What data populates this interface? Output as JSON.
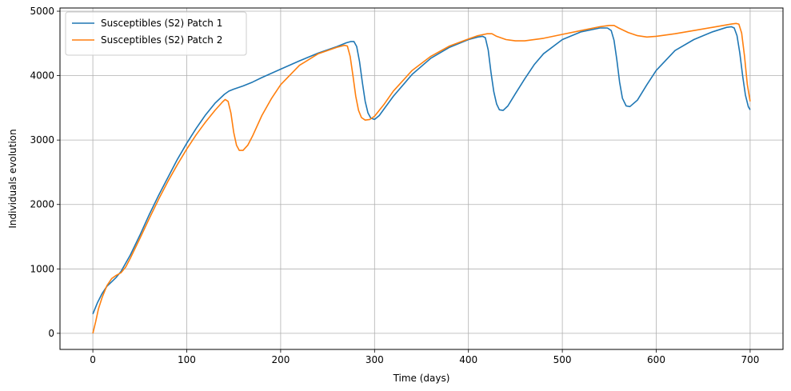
{
  "chart_data": {
    "type": "line",
    "xlabel": "Time (days)",
    "ylabel": "Individuals evolution",
    "xlim": [
      -35,
      735
    ],
    "ylim": [
      -250,
      5050
    ],
    "xticks": [
      0,
      100,
      200,
      300,
      400,
      500,
      600,
      700
    ],
    "yticks": [
      0,
      1000,
      2000,
      3000,
      4000,
      5000
    ],
    "grid": true,
    "legend_position": "top-left",
    "series": [
      {
        "name": "Susceptibles (S2) Patch 1",
        "color": "#1f77b4",
        "x": [
          0,
          5,
          10,
          15,
          20,
          25,
          30,
          40,
          50,
          60,
          70,
          80,
          90,
          100,
          110,
          120,
          130,
          140,
          145,
          150,
          160,
          170,
          180,
          200,
          220,
          240,
          260,
          270,
          275,
          278,
          281,
          284,
          287,
          290,
          293,
          296,
          300,
          305,
          310,
          320,
          340,
          360,
          380,
          400,
          410,
          415,
          418,
          421,
          424,
          427,
          430,
          433,
          437,
          442,
          450,
          460,
          470,
          480,
          500,
          520,
          540,
          548,
          552,
          555,
          558,
          561,
          564,
          568,
          572,
          580,
          590,
          600,
          620,
          640,
          660,
          675,
          680,
          683,
          686,
          689,
          692,
          695,
          698,
          700
        ],
        "values": [
          300,
          480,
          620,
          730,
          800,
          870,
          960,
          1220,
          1520,
          1840,
          2140,
          2420,
          2700,
          2950,
          3180,
          3390,
          3570,
          3710,
          3760,
          3790,
          3840,
          3900,
          3970,
          4100,
          4230,
          4350,
          4450,
          4510,
          4530,
          4530,
          4450,
          4220,
          3900,
          3600,
          3420,
          3340,
          3320,
          3380,
          3480,
          3680,
          4020,
          4270,
          4440,
          4560,
          4600,
          4610,
          4590,
          4400,
          4050,
          3750,
          3560,
          3470,
          3460,
          3530,
          3720,
          3950,
          4170,
          4340,
          4560,
          4680,
          4740,
          4740,
          4700,
          4550,
          4250,
          3900,
          3650,
          3530,
          3520,
          3620,
          3860,
          4080,
          4390,
          4560,
          4680,
          4750,
          4760,
          4740,
          4620,
          4350,
          4000,
          3700,
          3520,
          3470
        ]
      },
      {
        "name": "Susceptibles (S2) Patch 2",
        "color": "#ff7f0e",
        "x": [
          0,
          3,
          6,
          10,
          15,
          20,
          25,
          30,
          35,
          40,
          50,
          60,
          70,
          80,
          90,
          100,
          110,
          120,
          130,
          138,
          141,
          144,
          147,
          150,
          153,
          156,
          160,
          165,
          170,
          180,
          190,
          200,
          220,
          240,
          260,
          268,
          271,
          274,
          277,
          280,
          283,
          286,
          290,
          295,
          300,
          310,
          320,
          340,
          360,
          380,
          400,
          410,
          420,
          425,
          430,
          440,
          450,
          460,
          480,
          500,
          520,
          540,
          550,
          555,
          560,
          570,
          580,
          590,
          600,
          620,
          640,
          660,
          680,
          685,
          688,
          691,
          694,
          697,
          700
        ],
        "values": [
          0,
          180,
          380,
          560,
          740,
          850,
          900,
          940,
          1030,
          1170,
          1470,
          1780,
          2080,
          2360,
          2620,
          2860,
          3080,
          3280,
          3460,
          3590,
          3630,
          3600,
          3420,
          3120,
          2920,
          2840,
          2840,
          2920,
          3060,
          3380,
          3640,
          3860,
          4160,
          4340,
          4440,
          4470,
          4460,
          4300,
          4000,
          3680,
          3460,
          3350,
          3310,
          3320,
          3370,
          3550,
          3760,
          4080,
          4300,
          4460,
          4570,
          4620,
          4650,
          4650,
          4610,
          4560,
          4540,
          4540,
          4580,
          4640,
          4700,
          4760,
          4780,
          4780,
          4740,
          4670,
          4620,
          4600,
          4610,
          4650,
          4700,
          4750,
          4800,
          4810,
          4800,
          4660,
          4300,
          3860,
          3600
        ]
      }
    ]
  }
}
